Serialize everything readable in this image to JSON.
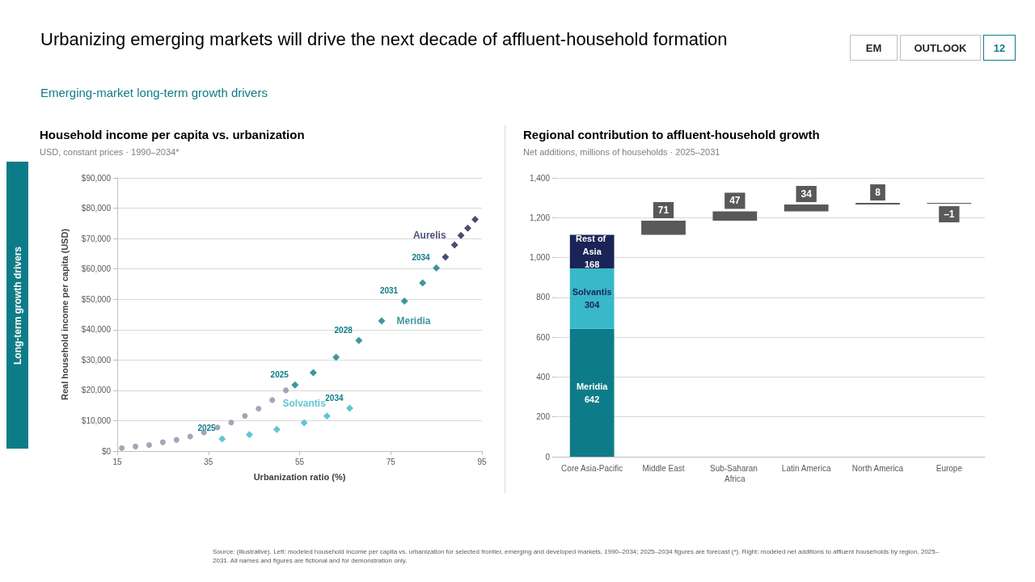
{
  "chart_data": [
    {
      "type": "other",
      "title": "Urbanizing emerging markets will drive the next decade of affluent-household formation",
      "subtitle": "Emerging-market long-term growth drivers",
      "annotations": [
        "EM",
        "OUTLOOK",
        "12",
        "Long-term growth drivers",
        "Source: (illustrative). Left: modeled household income per capita vs. urbanization for selected frontier, emerging and developed markets, 1990–2034; 2025–2034 figures are forecast (*). Right: modeled net additions to affluent households by region, 2025–2031. All names and figures are fictional and for demonstration only."
      ]
    },
    {
      "type": "scatter",
      "title": "Household income per capita vs. urbanization",
      "subtitle": "USD, constant prices · 1990–2034*",
      "xlabel": "Urbanization ratio (%)",
      "ylabel": "Real household income per capita (USD)",
      "series": [
        {
          "color": "#8c8fa8",
          "marker": "circle",
          "x": [
            16,
            19,
            22,
            25,
            28,
            31,
            34,
            37,
            40,
            43,
            46,
            49,
            52
          ],
          "values": [
            1000,
            1500,
            2000,
            2900,
            3700,
            4800,
            6100,
            7800,
            9400,
            11600,
            14000,
            16800,
            20000
          ]
        },
        {
          "name": "Solvantis",
          "color": "#38b8c8",
          "marker": "diamond",
          "x": [
            38,
            44,
            50,
            56,
            61,
            66
          ],
          "values": [
            4000,
            5400,
            7100,
            9300,
            11500,
            14100
          ]
        },
        {
          "name": "Meridia",
          "color": "#0e7c88",
          "marker": "diamond",
          "x": [
            54,
            58,
            63,
            68,
            73,
            78,
            82,
            85
          ],
          "values": [
            21800,
            25800,
            30900,
            36400,
            42900,
            49400,
            55400,
            60300
          ]
        },
        {
          "name": "Aurelis",
          "color": "#1b1f56",
          "marker": "diamond",
          "x": [
            87,
            89,
            90.4,
            91.9,
            93.5
          ],
          "values": [
            63900,
            67900,
            71000,
            73400,
            76300
          ]
        }
      ],
      "annotations": [
        {
          "text": "2025",
          "x": 38,
          "y": 4000
        },
        {
          "text": "2034",
          "x": 66,
          "y": 14100
        },
        {
          "text": "2025",
          "x": 54,
          "y": 21800
        },
        {
          "text": "2028",
          "x": 68,
          "y": 36400
        },
        {
          "text": "2031",
          "x": 78,
          "y": 49400
        },
        {
          "text": "2034",
          "x": 85,
          "y": 60300
        }
      ],
      "xlim": [
        15,
        95
      ],
      "xticks": [
        15,
        35,
        55,
        75,
        95
      ],
      "ylim": [
        0,
        90000
      ],
      "yticks": [
        {
          "value": 0,
          "label": "$0"
        },
        {
          "value": 10000,
          "label": "$10,000"
        },
        {
          "value": 20000,
          "label": "$20,000"
        },
        {
          "value": 30000,
          "label": "$30,000"
        },
        {
          "value": 40000,
          "label": "$40,000"
        },
        {
          "value": 50000,
          "label": "$50,000"
        },
        {
          "value": 60000,
          "label": "$60,000"
        },
        {
          "value": 70000,
          "label": "$70,000"
        },
        {
          "value": 80000,
          "label": "$80,000"
        },
        {
          "value": 90000,
          "label": "$90,000"
        }
      ],
      "grid": "y",
      "legend": false
    },
    {
      "type": "bar",
      "title": "Regional contribution to affluent-household growth",
      "subtitle": "Net additions, millions of households · 2025–2031",
      "categories": [
        "Core Asia-Pacific",
        "Middle East",
        "Sub-Saharan Africa",
        "Latin America",
        "North America",
        "Europe"
      ],
      "stacked": true,
      "data_labels": true,
      "series": [
        {
          "name": "Meridia",
          "color": "#0e7c88",
          "values": [
            642,
            null,
            null,
            null,
            null,
            null
          ]
        },
        {
          "name": "Solvantis",
          "color": "#38b8c8",
          "values": [
            304,
            null,
            null,
            null,
            null,
            null
          ]
        },
        {
          "name": "Rest of Asia",
          "color": "#1b2456",
          "values": [
            168,
            null,
            null,
            null,
            null,
            null
          ]
        },
        {
          "color": "#595959",
          "values": [
            null,
            71,
            47,
            34,
            8,
            -1
          ],
          "base": [
            null,
            1114,
            1185,
            1232,
            1266,
            1274
          ],
          "value_labels": [
            null,
            "71",
            "47",
            "34",
            "8",
            "–1"
          ]
        }
      ],
      "ylim": [
        0,
        1400
      ],
      "yticks": [
        0,
        200,
        400,
        600,
        800,
        {
          "value": 1000,
          "label": "1,000"
        },
        {
          "value": 1200,
          "label": "1,200"
        },
        {
          "value": 1400,
          "label": "1,400"
        }
      ],
      "grid": "y",
      "legend": false
    }
  ]
}
